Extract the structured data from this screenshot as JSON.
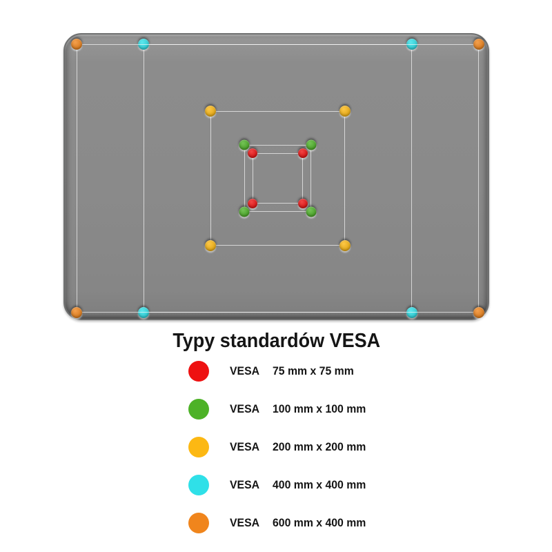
{
  "diagram": {
    "title": "Typy standardów VESA",
    "plate": {
      "description": "VESA adapter plate with mounting holes"
    },
    "standards": [
      {
        "name": "VESA",
        "size_label": "75 mm x 75 mm",
        "mm_width": 75,
        "mm_height": 75,
        "color": "#ee1111"
      },
      {
        "name": "VESA",
        "size_label": "100 mm x 100 mm",
        "mm_width": 100,
        "mm_height": 100,
        "color": "#4db227"
      },
      {
        "name": "VESA",
        "size_label": "200 mm x 200 mm",
        "mm_width": 200,
        "mm_height": 200,
        "color": "#fcb813"
      },
      {
        "name": "VESA",
        "size_label": "400 mm x 400 mm",
        "mm_width": 400,
        "mm_height": 400,
        "color": "#2fe0e8"
      },
      {
        "name": "VESA",
        "size_label": "600 mm x 400 mm",
        "mm_width": 600,
        "mm_height": 400,
        "color": "#f0851c"
      }
    ],
    "colors": {
      "plate_gray": "#8a8a8a",
      "pattern_line": "#fafafa",
      "text": "#151515",
      "background": "#ffffff"
    }
  }
}
